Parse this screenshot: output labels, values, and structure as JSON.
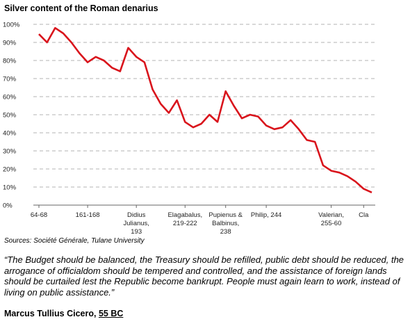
{
  "chart_data": {
    "type": "line",
    "title": "Silver content of the Roman denarius",
    "categories": [
      "64-68",
      null,
      null,
      null,
      null,
      null,
      "161-168",
      null,
      null,
      null,
      null,
      null,
      "Didius\nJulianus,\n193",
      null,
      null,
      null,
      null,
      null,
      "Elagabalus,\n219-222",
      null,
      null,
      null,
      null,
      "Pupienus &\nBalbinus,\n238",
      null,
      null,
      null,
      null,
      "Philip, 244",
      null,
      null,
      null,
      null,
      null,
      null,
      null,
      "Valerian,\n255-60",
      null,
      null,
      null,
      "Cla",
      null
    ],
    "series": [
      {
        "name": "Silver content",
        "color": "#d9141c",
        "values": [
          94.6,
          90,
          98,
          95,
          90,
          84,
          79,
          82,
          80,
          76,
          74,
          87,
          82,
          79,
          64,
          56,
          51,
          58,
          46,
          43,
          45,
          50,
          46,
          63,
          55,
          48,
          50,
          49,
          44,
          42,
          43,
          47,
          42,
          36,
          35,
          22,
          19,
          18,
          16,
          13,
          9,
          7
        ]
      }
    ],
    "ylim": [
      0,
      100
    ],
    "yticks": [
      {
        "value": 0,
        "label": "0%"
      },
      {
        "value": 10,
        "label": "10%"
      },
      {
        "value": 20,
        "label": "20%"
      },
      {
        "value": 30,
        "label": "30%"
      },
      {
        "value": 40,
        "label": "40%"
      },
      {
        "value": 50,
        "label": "50%"
      },
      {
        "value": 60,
        "label": "60%"
      },
      {
        "value": 70,
        "label": "70%"
      },
      {
        "value": 80,
        "label": "80%"
      },
      {
        "value": 90,
        "label": "90%"
      },
      {
        "value": 100,
        "label": "100%"
      }
    ],
    "grid": true,
    "source": "Sources: Société Générale, Tulane University"
  },
  "quote": "“The Budget should be balanced, the Treasury should be refilled, public debt should be reduced, the arrogance of officialdom should be tempered and controlled, and the assistance of foreign lands should be curtailed lest the Republic become bankrupt. People must again learn to work, instead of living on public assistance.”",
  "attribution": {
    "name": "Marcus Tullius Cicero,",
    "date": "55 BC"
  }
}
